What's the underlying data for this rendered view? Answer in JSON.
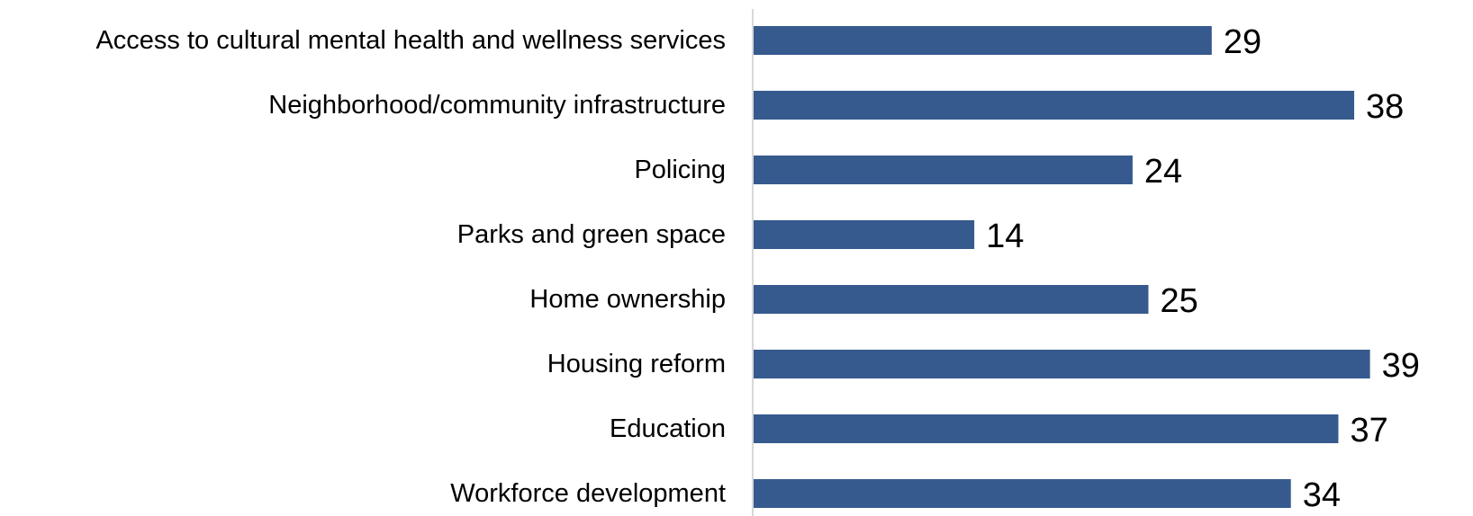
{
  "chart_data": {
    "type": "bar",
    "orientation": "horizontal",
    "categories": [
      "Access to cultural mental health and wellness services",
      "Neighborhood/community infrastructure",
      "Policing",
      "Parks and green space",
      "Home ownership",
      "Housing reform",
      "Education",
      "Workforce development"
    ],
    "values": [
      29,
      38,
      24,
      14,
      25,
      39,
      37,
      34
    ],
    "title": "",
    "xlabel": "",
    "ylabel": "",
    "xlim": [
      0,
      43.6
    ],
    "grid": false,
    "legend": "none",
    "data_labels": true,
    "bar_color": "#365A8E",
    "axis_color": "#D9D9D9"
  }
}
